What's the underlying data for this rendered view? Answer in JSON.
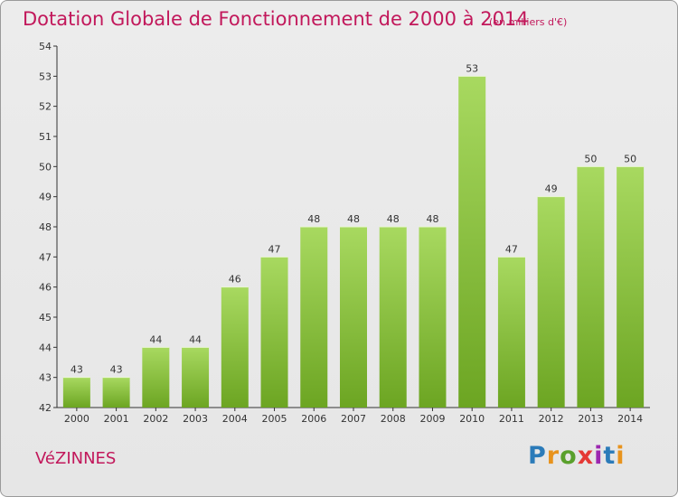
{
  "header": {
    "title": "Dotation Globale de Fonctionnement de 2000 à 2014",
    "subtitle": "(en milliers d'€)"
  },
  "footer": {
    "commune": "VéZINNES",
    "logo_text": "Proxiti"
  },
  "colors": {
    "title": "#c2185b",
    "bar_light": "#a8d960",
    "bar_dark": "#6ca522",
    "axis": "#333333"
  },
  "chart_data": {
    "type": "bar",
    "title": "Dotation Globale de Fonctionnement de 2000 à 2014",
    "subtitle": "(en milliers d'€)",
    "xlabel": "",
    "ylabel": "",
    "categories": [
      "2000",
      "2001",
      "2002",
      "2003",
      "2004",
      "2005",
      "2006",
      "2007",
      "2008",
      "2009",
      "2010",
      "2011",
      "2012",
      "2013",
      "2014"
    ],
    "values": [
      43,
      43,
      44,
      44,
      46,
      47,
      48,
      48,
      48,
      48,
      53,
      47,
      49,
      50,
      50
    ],
    "ylim": [
      42,
      54
    ],
    "yticks": [
      42,
      43,
      44,
      45,
      46,
      47,
      48,
      49,
      50,
      51,
      52,
      53,
      54
    ],
    "grid": false,
    "legend": "none"
  }
}
